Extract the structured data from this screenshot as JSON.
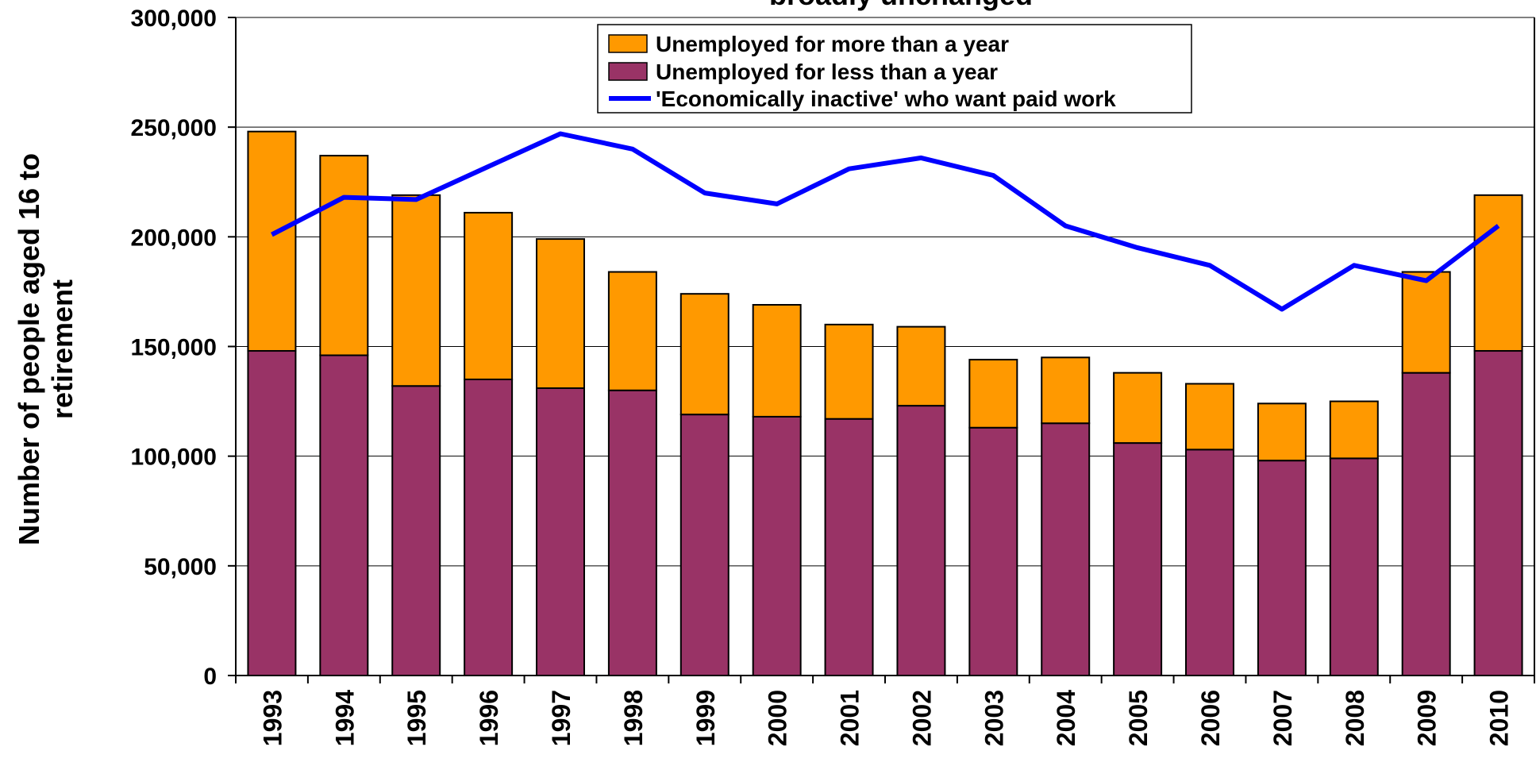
{
  "chart_data": {
    "type": "bar",
    "title": "broadly unchanged",
    "ylabel_lines": [
      "Number of people aged 16 to",
      "retirement"
    ],
    "xlabel": "",
    "ylim": [
      0,
      300000
    ],
    "y_ticks": [
      0,
      50000,
      100000,
      150000,
      200000,
      250000,
      300000
    ],
    "y_tick_labels": [
      "0",
      "50,000",
      "100,000",
      "150,000",
      "200,000",
      "250,000",
      "300,000"
    ],
    "grid": true,
    "stacked": true,
    "legend_position": "top-center",
    "categories": [
      "1993",
      "1994",
      "1995",
      "1996",
      "1997",
      "1998",
      "1999",
      "2000",
      "2001",
      "2002",
      "2003",
      "2004",
      "2005",
      "2006",
      "2007",
      "2008",
      "2009",
      "2010"
    ],
    "series": [
      {
        "name": "Unemployed for less than a year",
        "kind": "bar",
        "color": "#993366",
        "values": [
          148000,
          146000,
          132000,
          135000,
          131000,
          130000,
          119000,
          118000,
          117000,
          123000,
          113000,
          115000,
          106000,
          103000,
          98000,
          99000,
          138000,
          148000
        ]
      },
      {
        "name": "Unemployed for more than a year",
        "kind": "bar",
        "color": "#FF9900",
        "values": [
          100000,
          91000,
          87000,
          76000,
          68000,
          54000,
          55000,
          51000,
          43000,
          36000,
          31000,
          30000,
          32000,
          30000,
          26000,
          26000,
          46000,
          71000
        ]
      },
      {
        "name": "'Economically inactive' who want paid work",
        "kind": "line",
        "color": "#0000FF",
        "values": [
          201000,
          218000,
          217000,
          232000,
          247000,
          240000,
          220000,
          215000,
          231000,
          236000,
          228000,
          205000,
          195000,
          187000,
          167000,
          187000,
          180000,
          205000
        ]
      }
    ],
    "legend_order": [
      "Unemployed for more than a year",
      "Unemployed for less than a year",
      "'Economically inactive' who want paid work"
    ]
  }
}
